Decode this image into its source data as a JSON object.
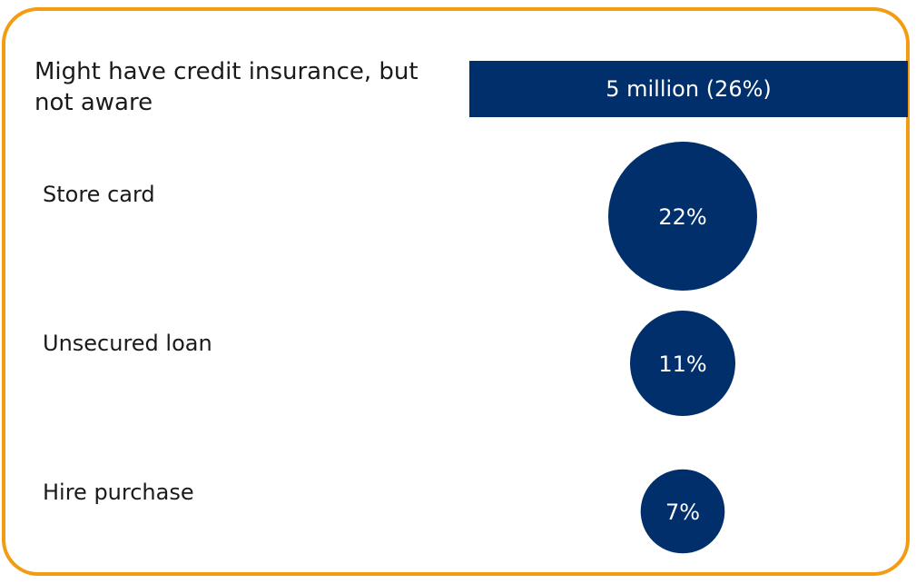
{
  "chart_data": {
    "type": "bubble",
    "title": "Might have credit insurance, but not aware",
    "total_label": "5 million (26%)",
    "categories": [
      "Store card",
      "Unsecured loan",
      "Hire purchase"
    ],
    "values": [
      22,
      11,
      7
    ],
    "value_labels": [
      "22%",
      "11%",
      "7%"
    ],
    "unit": "%"
  },
  "colors": {
    "bubble": "#012f6b",
    "banner": "#012f6b",
    "border": "#f39c12"
  }
}
